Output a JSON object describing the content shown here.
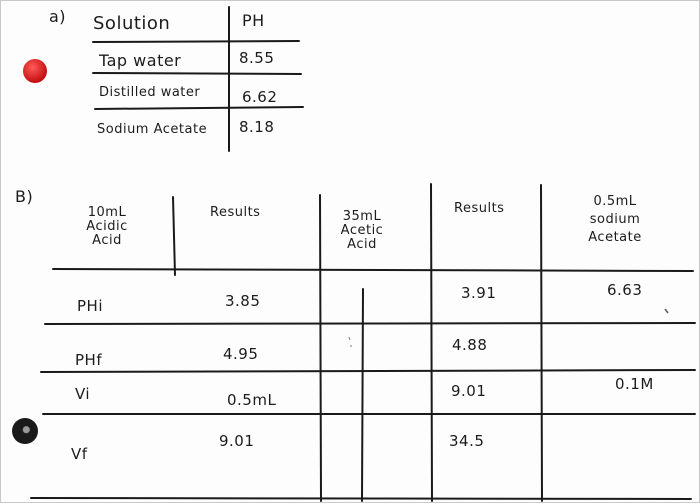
{
  "part_a": {
    "label": "a)",
    "header": {
      "solution": "Solution",
      "ph": "PH"
    },
    "rows": [
      {
        "solution": "Tap water",
        "ph": "8.55"
      },
      {
        "solution": "Distilled water",
        "ph": "6.62"
      },
      {
        "solution": "Sodium Acetate",
        "ph": "8.18"
      }
    ]
  },
  "part_b": {
    "label": "B)",
    "headers": {
      "col1": [
        "10mL",
        "Acidic",
        "Acid"
      ],
      "col2": "Results",
      "col3": [
        "35mL",
        "Acetic",
        "Acid"
      ],
      "col4": "Results",
      "col5": [
        "0.5mL",
        "sodium",
        "Acetate"
      ]
    },
    "rows": [
      {
        "label": "PHi",
        "results1": "3.85",
        "results2": "3.91",
        "extra": "6.63"
      },
      {
        "label": "PHf",
        "results1": "4.95",
        "results2": "4.88",
        "extra": ""
      },
      {
        "label": "Vi",
        "results1": "0.5mL",
        "results2": "9.01",
        "extra": "0.1M"
      },
      {
        "label": "Vf",
        "results1": "9.01",
        "results2": "34.5",
        "extra": ""
      }
    ]
  },
  "colors": {
    "red_dot": "#d81c1c",
    "dark_dot": "#1a1a1a",
    "ink": "#1c1c1c"
  }
}
